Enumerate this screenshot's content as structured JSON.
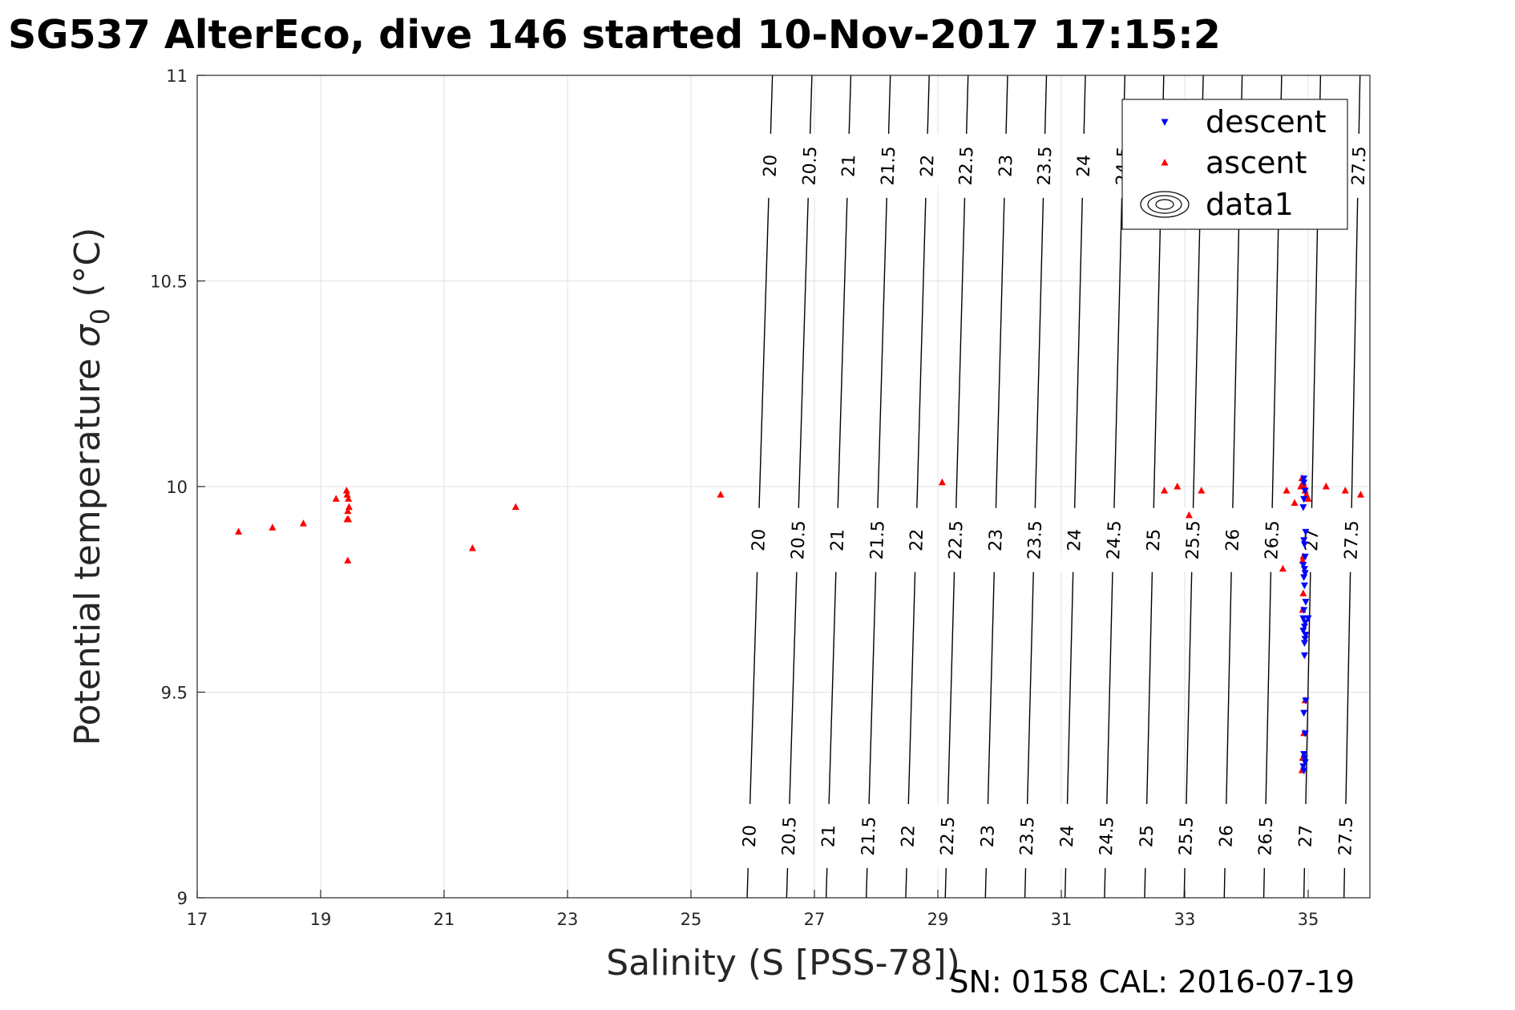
{
  "chart_data": {
    "type": "scatter",
    "title": "SG537 AlterEco, dive 146 started 10-Nov-2017 17:15:2",
    "xlabel": "Salinity (S [PSS-78])",
    "ylabel_main": "Potential temperature ",
    "ylabel_sigma": "σ",
    "ylabel_sub": "0",
    "ylabel_unit": " (°C)",
    "footer": "SN: 0158  CAL: 2016-07-19",
    "xlim": [
      17,
      36
    ],
    "ylim": [
      9,
      11
    ],
    "xticks": [
      17,
      19,
      21,
      23,
      25,
      27,
      29,
      31,
      33,
      35
    ],
    "yticks": [
      9,
      9.5,
      10,
      10.5,
      11
    ],
    "xtick_labels": [
      "17",
      "19",
      "21",
      "23",
      "25",
      "27",
      "29",
      "31",
      "33",
      "35"
    ],
    "ytick_labels": [
      "9",
      "9.5",
      "10",
      "10.5",
      "11"
    ],
    "grid": true,
    "legend": {
      "position": "top-right",
      "entries": [
        "descent",
        "ascent",
        "data1"
      ]
    },
    "colors": {
      "descent": "#0000ff",
      "ascent": "#ff0000",
      "contour": "#000000",
      "grid": "#e0e0e0"
    },
    "contours": {
      "levels": [
        20,
        20.5,
        21,
        21.5,
        22,
        22.5,
        23,
        23.5,
        24,
        24.5,
        25,
        25.5,
        26,
        26.5,
        27,
        27.5
      ],
      "labels": [
        "20",
        "20.5",
        "21",
        "21.5",
        "22",
        "22.5",
        "23",
        "23.5",
        "24",
        "24.5",
        "25",
        "25.5",
        "26",
        "26.5",
        "27",
        "27.5"
      ],
      "salinity_at_t9": [
        25.91,
        26.55,
        27.19,
        27.84,
        28.48,
        29.12,
        29.77,
        30.41,
        31.06,
        31.7,
        32.35,
        32.99,
        33.64,
        34.28,
        34.93,
        35.58
      ],
      "salinity_at_t11": [
        26.32,
        26.96,
        27.59,
        28.23,
        28.86,
        29.49,
        30.13,
        30.76,
        31.39,
        32.03,
        32.66,
        33.3,
        33.93,
        34.57,
        35.2,
        35.84
      ]
    },
    "series": [
      {
        "name": "descent",
        "marker": "triangle-down",
        "x": [
          34.93,
          34.93,
          34.95,
          34.93,
          34.92,
          34.96,
          34.93,
          34.94,
          34.95,
          34.92,
          34.94,
          34.95,
          34.93,
          34.94,
          34.96,
          34.93,
          34.92,
          34.95,
          34.94,
          34.92,
          34.96,
          34.95,
          34.94,
          35.0,
          34.94,
          34.96,
          34.93,
          34.95,
          34.93,
          34.94,
          34.95,
          34.92,
          34.93
        ],
        "y": [
          10.02,
          10.01,
          9.99,
          9.97,
          9.95,
          9.89,
          9.87,
          9.86,
          9.83,
          9.81,
          9.8,
          9.79,
          9.78,
          9.76,
          9.72,
          9.7,
          9.68,
          9.67,
          9.66,
          9.65,
          9.64,
          9.63,
          9.62,
          9.68,
          9.59,
          9.48,
          9.45,
          9.4,
          9.35,
          9.34,
          9.33,
          9.32,
          9.31
        ]
      },
      {
        "name": "ascent",
        "marker": "triangle-up",
        "x": [
          17.67,
          18.22,
          18.72,
          19.25,
          19.42,
          19.43,
          19.45,
          19.46,
          19.44,
          19.43,
          19.45,
          19.44,
          21.46,
          22.16,
          25.48,
          29.07,
          32.67,
          32.88,
          33.07,
          33.27,
          34.59,
          34.65,
          34.78,
          34.88,
          34.9,
          34.92,
          34.94,
          34.95,
          34.97,
          35.0,
          35.29,
          35.6,
          35.85,
          34.92,
          34.91,
          34.92,
          34.91,
          34.95,
          34.93,
          34.91,
          34.9
        ],
        "y": [
          9.89,
          9.9,
          9.91,
          9.97,
          9.99,
          9.98,
          9.97,
          9.95,
          9.94,
          9.92,
          9.92,
          9.82,
          9.85,
          9.95,
          9.98,
          10.01,
          9.99,
          10.0,
          9.93,
          9.99,
          9.8,
          9.99,
          9.96,
          10.0,
          10.02,
          10.01,
          10.0,
          9.99,
          9.98,
          9.97,
          10.0,
          9.99,
          9.98,
          9.83,
          9.82,
          9.74,
          9.7,
          9.48,
          9.4,
          9.34,
          9.31
        ]
      }
    ]
  }
}
